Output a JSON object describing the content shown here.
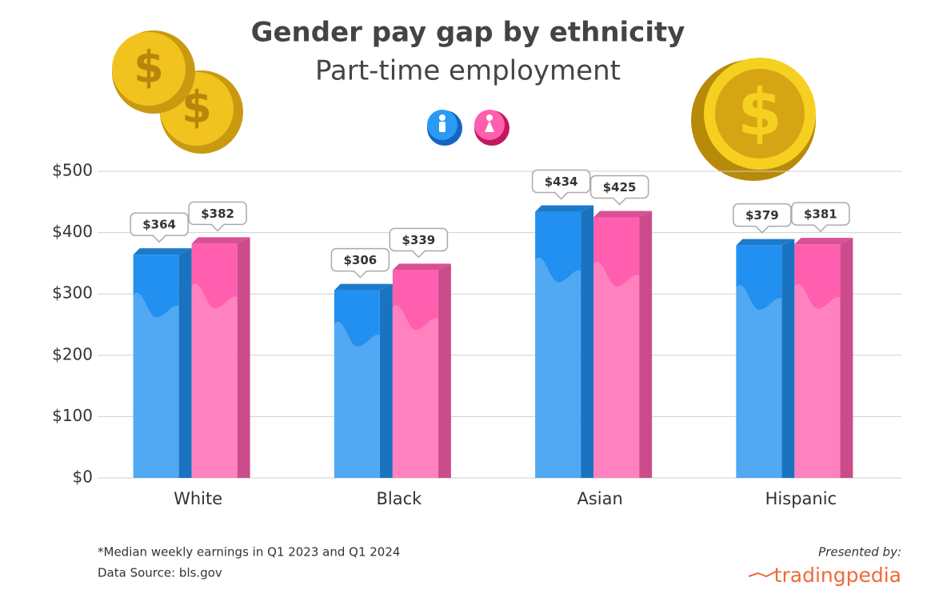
{
  "chart_data": {
    "type": "bar",
    "title": "Gender pay gap by ethnicity",
    "subtitle": "Part-time employment",
    "categories": [
      "White",
      "Black",
      "Asian",
      "Hispanic"
    ],
    "series": [
      {
        "color": "#2190f0",
        "values": [
          364,
          306,
          434,
          379
        ],
        "value_labels": [
          "$364",
          "$306",
          "$434",
          "$379"
        ]
      },
      {
        "color": "#ff5fae",
        "values": [
          382,
          339,
          425,
          381
        ],
        "value_labels": [
          "$382",
          "$339",
          "$425",
          "$381"
        ]
      }
    ],
    "ylim": [
      0,
      500
    ],
    "yticks": [
      {
        "value": 0,
        "label": "$0"
      },
      {
        "value": 100,
        "label": "$100"
      },
      {
        "value": 200,
        "label": "$200"
      },
      {
        "value": 300,
        "label": "$300"
      },
      {
        "value": 400,
        "label": "$400"
      },
      {
        "value": 500,
        "label": "$500"
      }
    ],
    "grid": true,
    "footnote": "*Median weekly earnings in Q1 2023 and Q1 2024",
    "source": "Data Source: bls.gov",
    "credit": "Presented by:",
    "brand": "tradingpedia"
  }
}
